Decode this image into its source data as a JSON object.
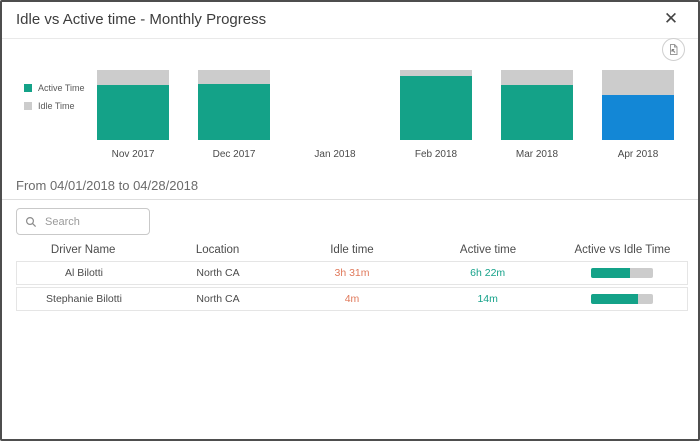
{
  "modal": {
    "title": "Idle vs Active time - Monthly Progress",
    "close_glyph": "✕"
  },
  "colors": {
    "active_teal": "#14A288",
    "idle_gray": "#cccccc",
    "selected_blue": "#1387d6",
    "idle_text_orange": "#e0795b",
    "active_text_teal": "#16a28a"
  },
  "chart_data": {
    "type": "bar",
    "stacked": true,
    "unit": "percent_of_month_time",
    "categories": [
      "Nov 2017",
      "Dec 2017",
      "Jan 2018",
      "Feb 2018",
      "Mar 2018",
      "Apr 2018"
    ],
    "series": [
      {
        "name": "Active Time",
        "values_pct": [
          79,
          80,
          null,
          92,
          79,
          64
        ]
      },
      {
        "name": "Idle Time",
        "values_pct": [
          21,
          20,
          null,
          8,
          21,
          36
        ]
      }
    ],
    "selected_category": "Apr 2018",
    "legend_position": "left",
    "ylim": [
      0,
      100
    ],
    "grid": false
  },
  "filter": {
    "date_range_label": "From 04/01/2018 to 04/28/2018"
  },
  "search": {
    "placeholder": "Search",
    "value": ""
  },
  "table": {
    "columns": [
      "Driver Name",
      "Location",
      "Idle time",
      "Active time",
      "Active vs Idle Time"
    ],
    "rows": [
      {
        "driver": "Al Bilotti",
        "location": "North CA",
        "idle_time": "3h 31m",
        "active_time": "6h 22m",
        "active_pct": 64
      },
      {
        "driver": "Stephanie Bilotti",
        "location": "North CA",
        "idle_time": "4m",
        "active_time": "14m",
        "active_pct": 76
      }
    ]
  }
}
